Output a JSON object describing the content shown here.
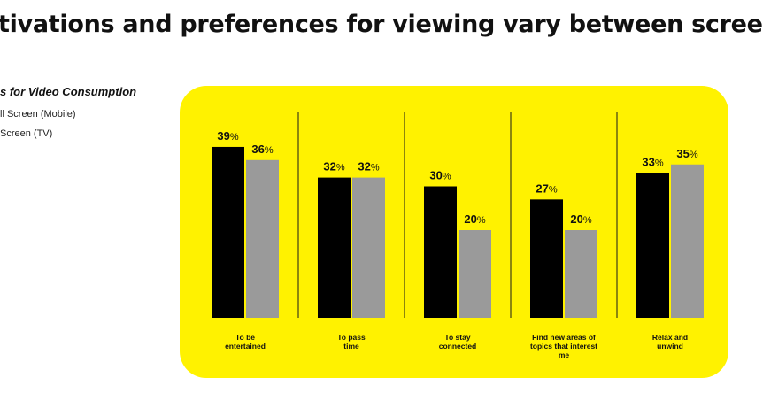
{
  "headline": "tivations and preferences for viewing vary between scree",
  "legend": {
    "title": "s for Video Consumption",
    "items": [
      {
        "label": "ll Screen (Mobile)",
        "color": "#000000"
      },
      {
        "label": "Screen (TV)",
        "color": "#9a9a9a"
      }
    ]
  },
  "colors": {
    "panel": "#fff200",
    "divider": "#1a1a1a",
    "series_mobile": "#000000",
    "series_tv": "#9a9a9a"
  },
  "chart_data": {
    "type": "bar",
    "title": "",
    "categories": [
      [
        "To be",
        "entertained"
      ],
      [
        "To pass",
        "time"
      ],
      [
        "To stay",
        "connected"
      ],
      [
        "Find new areas of",
        "topics that interest",
        "me"
      ],
      [
        "Relax and",
        "unwind"
      ]
    ],
    "series": [
      {
        "name": "ll Screen (Mobile)",
        "values": [
          39,
          32,
          30,
          27,
          33
        ]
      },
      {
        "name": "Screen (TV)",
        "values": [
          36,
          32,
          20,
          20,
          35
        ]
      }
    ],
    "value_labels": [
      [
        "39",
        "36"
      ],
      [
        "32",
        "32"
      ],
      [
        "30",
        "20"
      ],
      [
        "27",
        "20"
      ],
      [
        "33",
        "35"
      ]
    ],
    "value_suffix": "%",
    "ylim": [
      0,
      40
    ],
    "grid": false,
    "legend_position": "left"
  }
}
